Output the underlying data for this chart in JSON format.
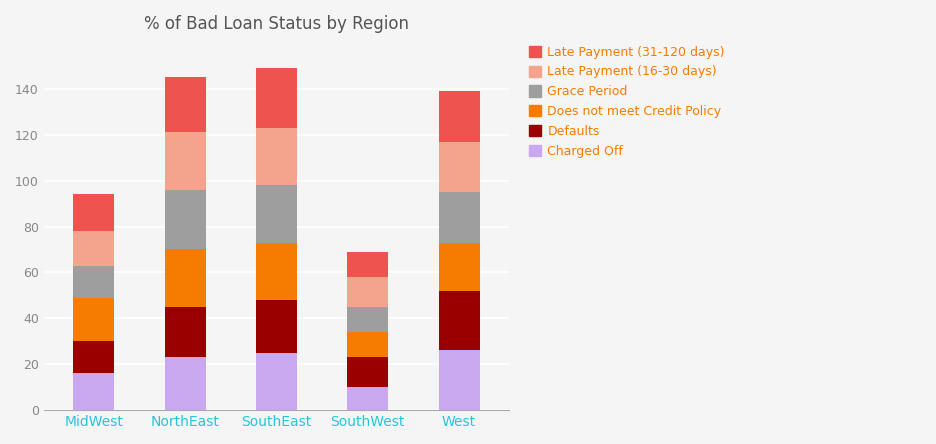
{
  "title": "% of Bad Loan Status by Region",
  "categories": [
    "MidWest",
    "NorthEast",
    "SouthEast",
    "SouthWest",
    "West"
  ],
  "series": [
    {
      "name": "Charged Off",
      "color": "#c9a8f0",
      "values": [
        16,
        23,
        25,
        10,
        26
      ]
    },
    {
      "name": "Defaults",
      "color": "#9b0000",
      "values": [
        14,
        22,
        23,
        13,
        26
      ]
    },
    {
      "name": "Does not meet Credit Policy",
      "color": "#f57c00",
      "values": [
        19,
        25,
        25,
        11,
        21
      ]
    },
    {
      "name": "Grace Period",
      "color": "#9e9e9e",
      "values": [
        14,
        26,
        25,
        11,
        22
      ]
    },
    {
      "name": "Late Payment (16-30 days)",
      "color": "#f4a48c",
      "values": [
        15,
        25,
        25,
        13,
        22
      ]
    },
    {
      "name": "Late Payment (31-120 days)",
      "color": "#ef5350",
      "values": [
        16,
        24,
        26,
        11,
        22
      ]
    }
  ],
  "ylim": [
    0,
    160
  ],
  "yticks": [
    0,
    20,
    40,
    60,
    80,
    100,
    120,
    140
  ],
  "background_color": "#f5f5f5",
  "plot_bg_color": "#f5f5f5",
  "grid_color": "#ffffff",
  "title_color": "#555555",
  "xtick_color": "#26c6da",
  "ytick_color": "#888888",
  "title_fontsize": 12,
  "legend_text_color": "#f57c00",
  "legend_fontsize": 9,
  "bar_width": 0.45
}
